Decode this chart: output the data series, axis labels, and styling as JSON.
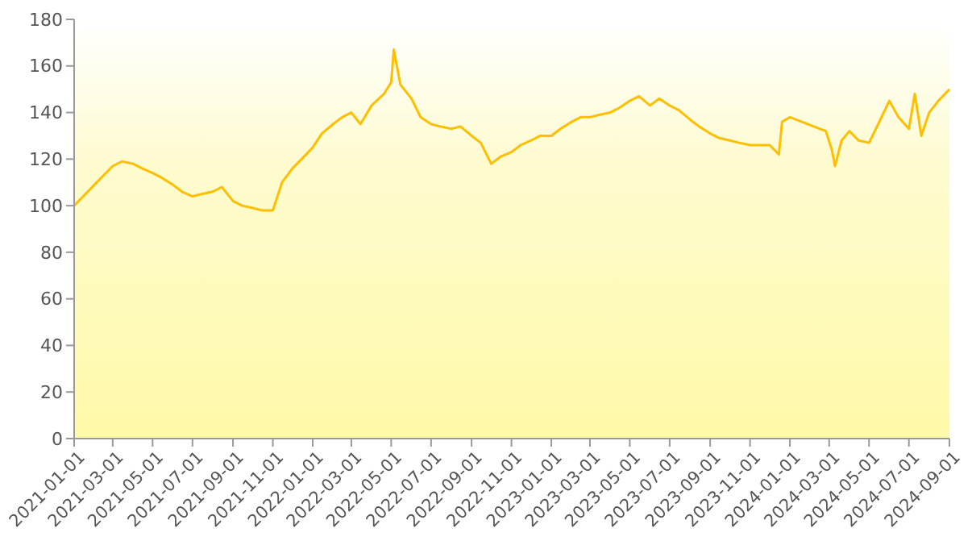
{
  "chart_data": {
    "type": "line",
    "x": [
      "2021-01-01",
      "2021-01-15",
      "2021-02-01",
      "2021-02-15",
      "2021-03-01",
      "2021-03-15",
      "2021-04-01",
      "2021-04-15",
      "2021-05-01",
      "2021-05-15",
      "2021-06-01",
      "2021-06-15",
      "2021-07-01",
      "2021-07-15",
      "2021-08-01",
      "2021-08-15",
      "2021-09-01",
      "2021-09-15",
      "2021-10-01",
      "2021-10-15",
      "2021-11-01",
      "2021-11-15",
      "2021-12-01",
      "2021-12-15",
      "2022-01-01",
      "2022-01-15",
      "2022-02-01",
      "2022-02-15",
      "2022-03-01",
      "2022-03-15",
      "2022-04-01",
      "2022-04-20",
      "2022-05-01",
      "2022-05-05",
      "2022-05-15",
      "2022-06-01",
      "2022-06-15",
      "2022-07-01",
      "2022-07-15",
      "2022-08-01",
      "2022-08-15",
      "2022-09-01",
      "2022-09-15",
      "2022-10-01",
      "2022-10-15",
      "2022-11-01",
      "2022-11-15",
      "2022-12-01",
      "2022-12-15",
      "2023-01-01",
      "2023-01-15",
      "2023-02-01",
      "2023-02-15",
      "2023-03-01",
      "2023-03-15",
      "2023-04-01",
      "2023-04-15",
      "2023-05-01",
      "2023-05-15",
      "2023-06-01",
      "2023-06-15",
      "2023-07-01",
      "2023-07-15",
      "2023-08-01",
      "2023-08-15",
      "2023-09-01",
      "2023-09-15",
      "2023-10-01",
      "2023-10-15",
      "2023-11-01",
      "2023-11-15",
      "2023-12-01",
      "2023-12-15",
      "2023-12-20",
      "2024-01-01",
      "2024-02-25",
      "2024-03-05",
      "2024-03-10",
      "2024-03-20",
      "2024-04-01",
      "2024-04-15",
      "2024-05-01",
      "2024-05-15",
      "2024-06-01",
      "2024-06-15",
      "2024-07-01",
      "2024-07-10",
      "2024-07-20",
      "2024-08-01",
      "2024-08-15",
      "2024-09-01"
    ],
    "series": [
      {
        "color": "#ffbf00",
        "values": [
          100,
          104,
          109,
          113,
          117,
          119,
          118,
          116,
          114,
          112,
          109,
          106,
          104,
          105,
          106,
          108,
          102,
          100,
          99,
          98,
          98,
          110,
          116,
          120,
          125,
          131,
          135,
          138,
          140,
          135,
          143,
          148,
          153,
          167,
          152,
          146,
          138,
          135,
          134,
          133,
          134,
          130,
          127,
          118,
          121,
          123,
          126,
          128,
          130,
          130,
          133,
          136,
          138,
          138,
          139,
          140,
          142,
          145,
          147,
          143,
          146,
          143,
          141,
          137,
          134,
          131,
          129,
          128,
          127,
          126,
          126,
          126,
          122,
          136,
          138,
          132,
          124,
          117,
          128,
          132,
          128,
          127,
          135,
          145,
          138,
          133,
          148,
          130,
          140,
          145,
          150
        ]
      }
    ],
    "xlim": [
      "2021-01-01",
      "2024-09-01"
    ],
    "xticks": [
      {
        "value": "2021-01-01",
        "label": "2021-01-01"
      },
      {
        "value": "2021-03-01",
        "label": "2021-03-01"
      },
      {
        "value": "2021-05-01",
        "label": "2021-05-01"
      },
      {
        "value": "2021-07-01",
        "label": "2021-07-01"
      },
      {
        "value": "2021-09-01",
        "label": "2021-09-01"
      },
      {
        "value": "2021-11-01",
        "label": "2021-11-01"
      },
      {
        "value": "2022-01-01",
        "label": "2022-01-01"
      },
      {
        "value": "2022-03-01",
        "label": "2022-03-01"
      },
      {
        "value": "2022-05-01",
        "label": "2022-05-01"
      },
      {
        "value": "2022-07-01",
        "label": "2022-07-01"
      },
      {
        "value": "2022-09-01",
        "label": "2022-09-01"
      },
      {
        "value": "2022-11-01",
        "label": "2022-11-01"
      },
      {
        "value": "2023-01-01",
        "label": "2023-01-01"
      },
      {
        "value": "2023-03-01",
        "label": "2023-03-01"
      },
      {
        "value": "2023-05-01",
        "label": "2023-05-01"
      },
      {
        "value": "2023-07-01",
        "label": "2023-07-01"
      },
      {
        "value": "2023-09-01",
        "label": "2023-09-01"
      },
      {
        "value": "2023-11-01",
        "label": "2023-11-01"
      },
      {
        "value": "2024-01-01",
        "label": "2024-01-01"
      },
      {
        "value": "2024-03-01",
        "label": "2024-03-01"
      },
      {
        "value": "2024-05-01",
        "label": "2024-05-01"
      },
      {
        "value": "2024-07-01",
        "label": "2024-07-01"
      },
      {
        "value": "2024-09-01",
        "label": "2024-09-01"
      }
    ],
    "ylim": [
      0,
      180
    ],
    "yticks": [
      0,
      20,
      40,
      60,
      80,
      100,
      120,
      140,
      160,
      180
    ],
    "grid": false,
    "marker": "none",
    "line_style": "solid"
  }
}
